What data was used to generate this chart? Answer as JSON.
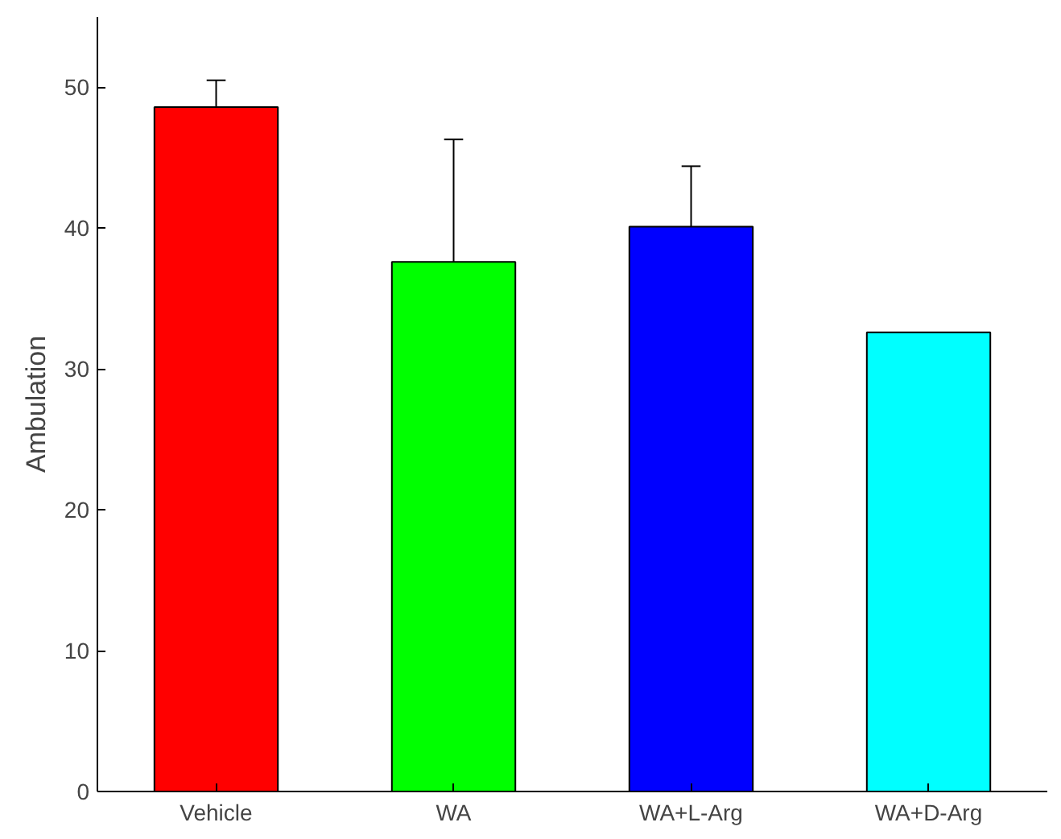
{
  "chart_data": {
    "type": "bar",
    "ylabel": "Ambulation",
    "categories": [
      "Vehicle",
      "WA",
      "WA+L-Arg",
      "WA+D-Arg"
    ],
    "values": [
      48.6,
      37.6,
      40.1,
      32.6
    ],
    "errors": [
      1.9,
      8.7,
      4.3,
      null
    ],
    "colors": [
      "#ff0000",
      "#00ff00",
      "#0000ff",
      "#00ffff"
    ],
    "ylim": [
      0,
      55
    ],
    "yticks": [
      0,
      10,
      20,
      30,
      40,
      50
    ],
    "grid": false
  }
}
